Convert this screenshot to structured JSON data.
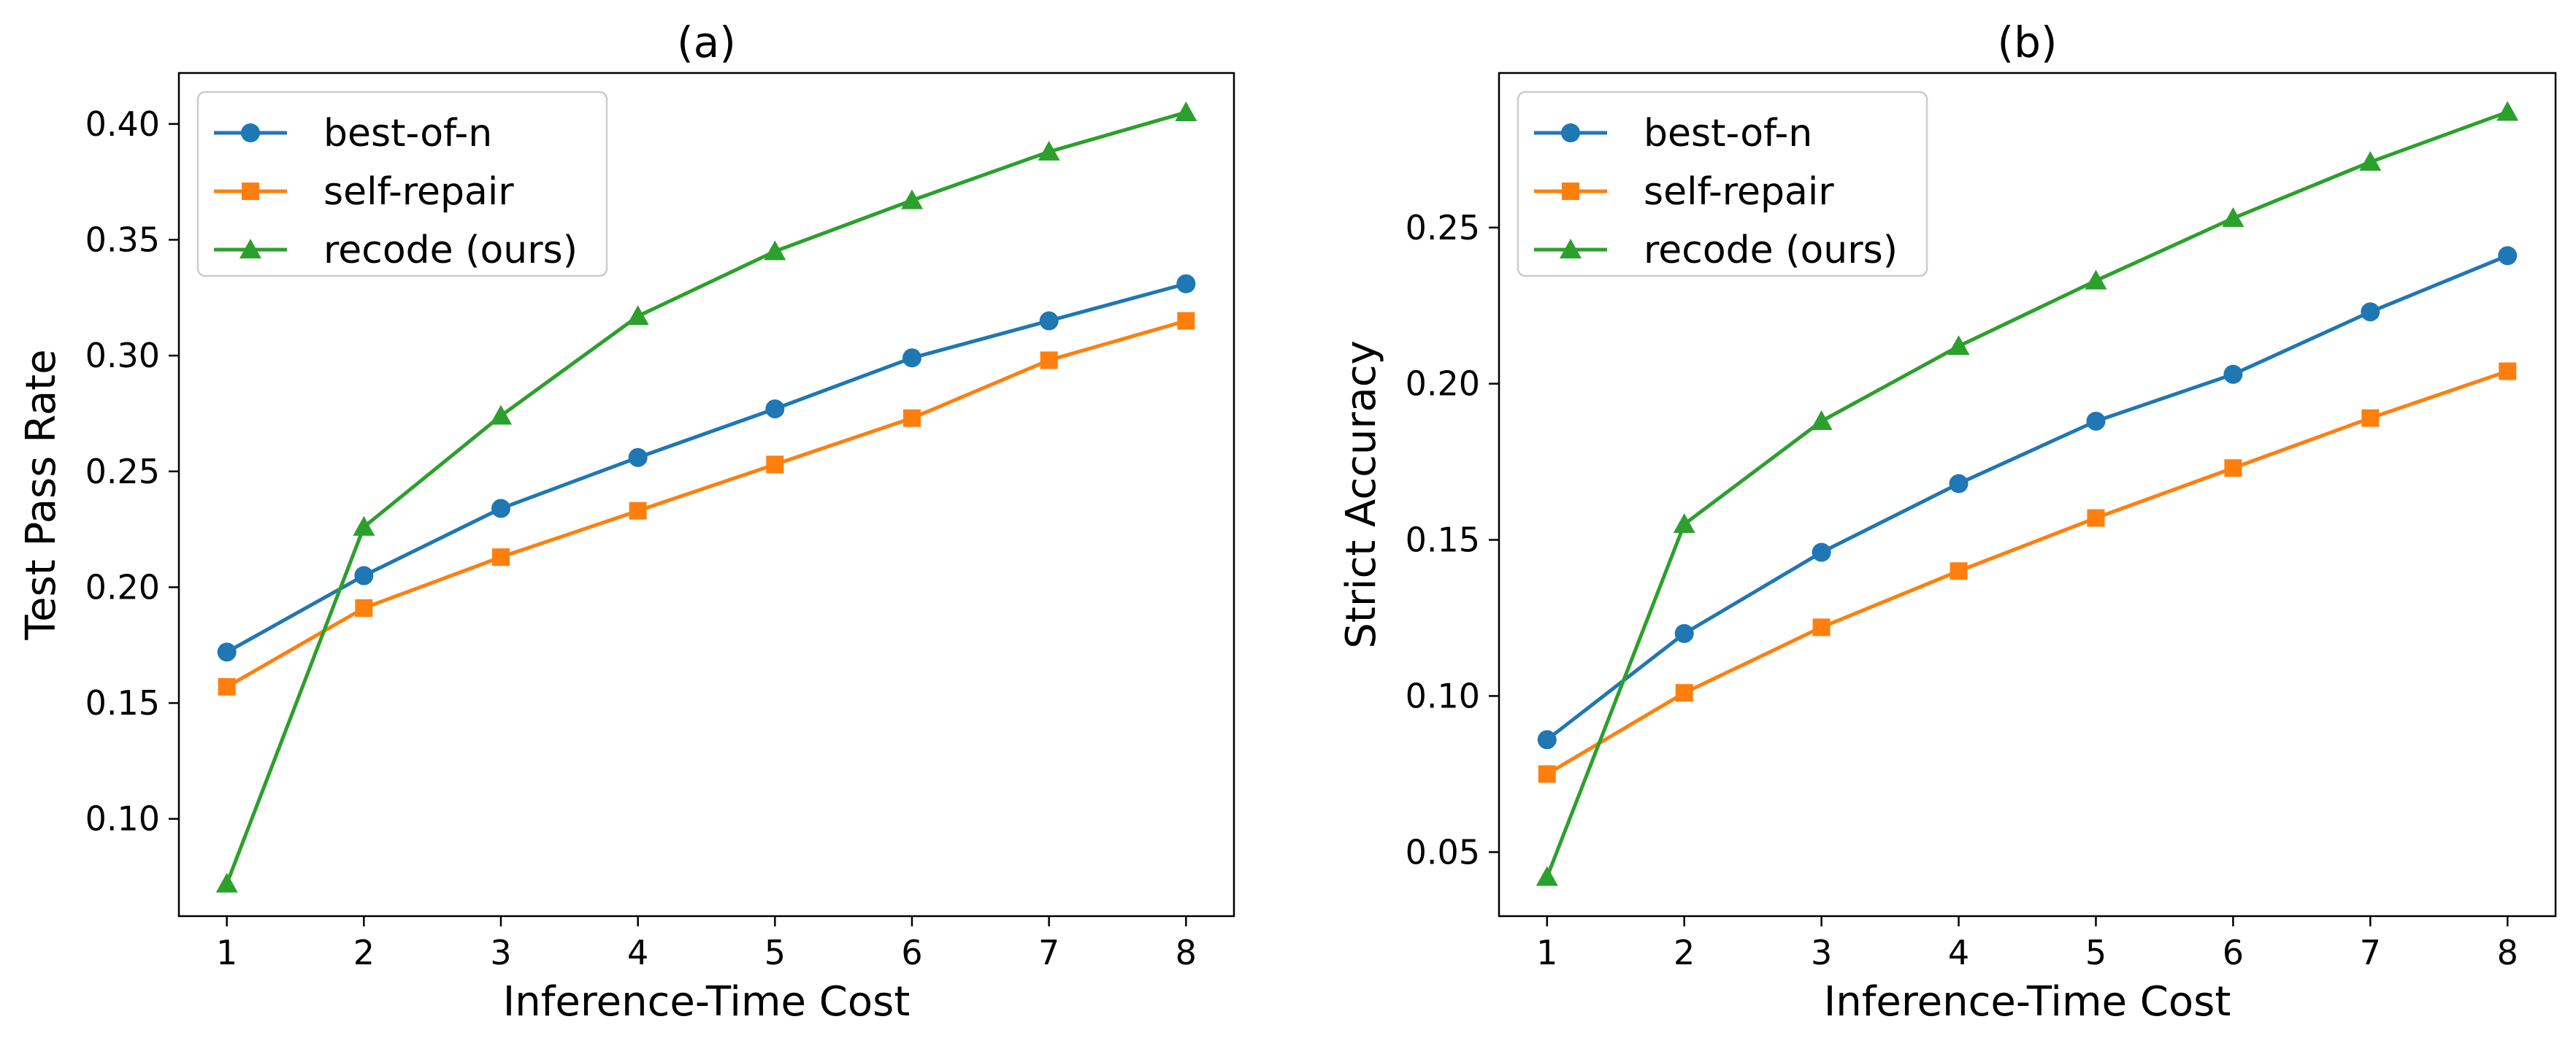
{
  "chart_data": [
    {
      "type": "line",
      "title": "(a)",
      "xlabel": "Inference-Time  Cost",
      "ylabel": "Test  Pass  Rate",
      "x": [
        1,
        2,
        3,
        4,
        5,
        6,
        7,
        8
      ],
      "xlim": [
        0.65,
        8.35
      ],
      "ylim": [
        0.058,
        0.422
      ],
      "yticks": [
        0.1,
        0.15,
        0.2,
        0.25,
        0.3,
        0.35,
        0.4
      ],
      "grid": false,
      "legend_position": "top-left",
      "series": [
        {
          "name": "best-of-n",
          "color": "#1f77b4",
          "marker": "circle",
          "values": [
            0.172,
            0.205,
            0.234,
            0.256,
            0.277,
            0.299,
            0.315,
            0.331
          ]
        },
        {
          "name": "self-repair",
          "color": "#ff7f0e",
          "marker": "square",
          "values": [
            0.157,
            0.191,
            0.213,
            0.233,
            0.253,
            0.273,
            0.298,
            0.315
          ]
        },
        {
          "name": "recode (ours)",
          "color": "#2ca02c",
          "marker": "triangle",
          "values": [
            0.072,
            0.226,
            0.274,
            0.317,
            0.345,
            0.367,
            0.388,
            0.405
          ]
        }
      ]
    },
    {
      "type": "line",
      "title": "(b)",
      "xlabel": "Inference-Time  Cost",
      "ylabel": "Strict  Accuracy",
      "x": [
        1,
        2,
        3,
        4,
        5,
        6,
        7,
        8
      ],
      "xlim": [
        0.65,
        8.35
      ],
      "ylim": [
        0.0295,
        0.2995
      ],
      "yticks": [
        0.05,
        0.1,
        0.15,
        0.2,
        0.25
      ],
      "grid": false,
      "legend_position": "top-left",
      "series": [
        {
          "name": "best-of-n",
          "color": "#1f77b4",
          "marker": "circle",
          "values": [
            0.086,
            0.12,
            0.146,
            0.168,
            0.188,
            0.203,
            0.223,
            0.241
          ]
        },
        {
          "name": "self-repair",
          "color": "#ff7f0e",
          "marker": "square",
          "values": [
            0.075,
            0.101,
            0.122,
            0.14,
            0.157,
            0.173,
            0.189,
            0.204
          ]
        },
        {
          "name": "recode (ours)",
          "color": "#2ca02c",
          "marker": "triangle",
          "values": [
            0.042,
            0.155,
            0.188,
            0.212,
            0.233,
            0.253,
            0.271,
            0.287
          ]
        }
      ]
    }
  ]
}
